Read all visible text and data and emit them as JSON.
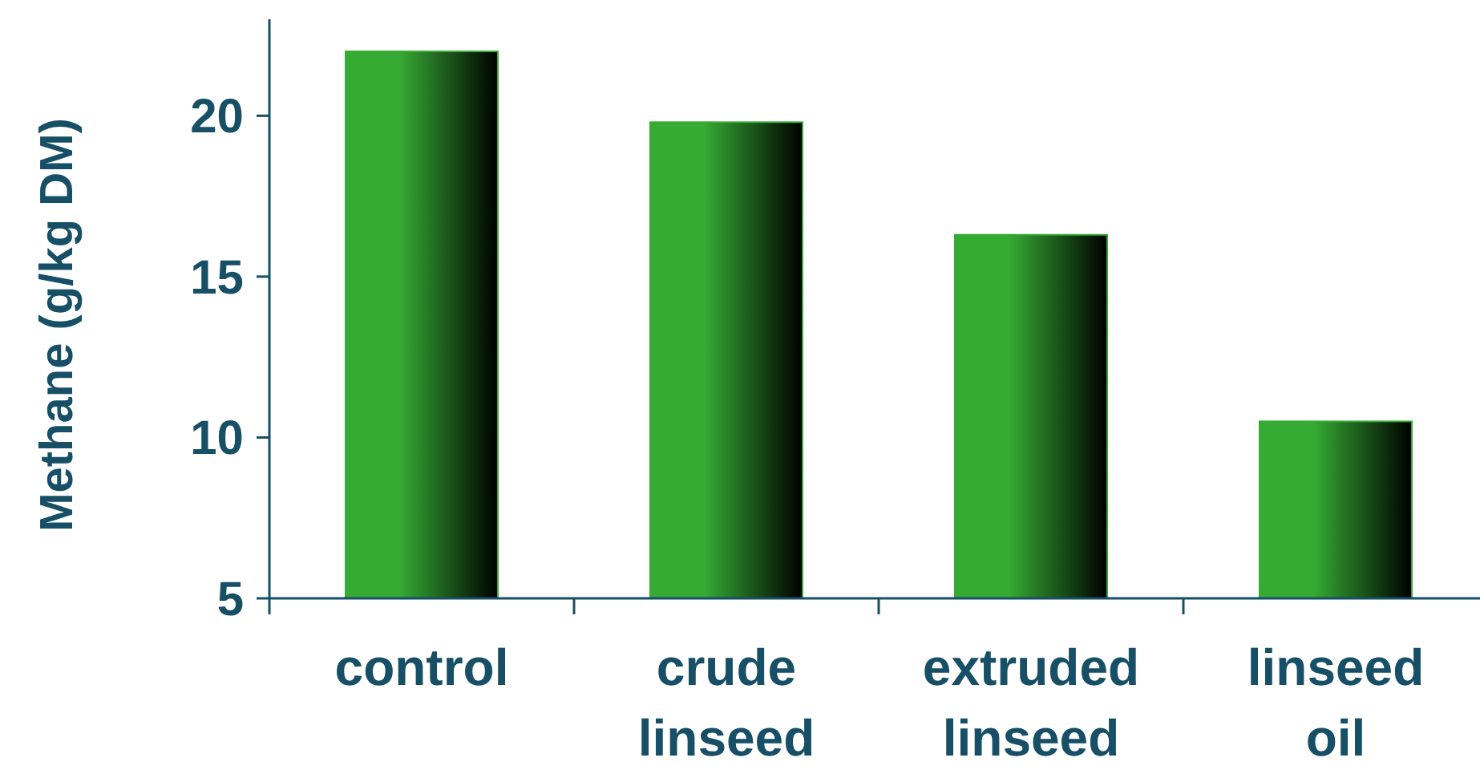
{
  "chart_data": {
    "type": "bar",
    "ylabel": "Methane (g/kg DM)",
    "categories": [
      "control",
      "crude linseed",
      "extruded linseed",
      "linseed oil"
    ],
    "values": [
      22.0,
      19.8,
      16.3,
      10.5
    ],
    "color": "#36ab34",
    "ylim": [
      5,
      23
    ],
    "yticks": [
      5,
      10,
      15,
      20
    ],
    "grid": false
  }
}
